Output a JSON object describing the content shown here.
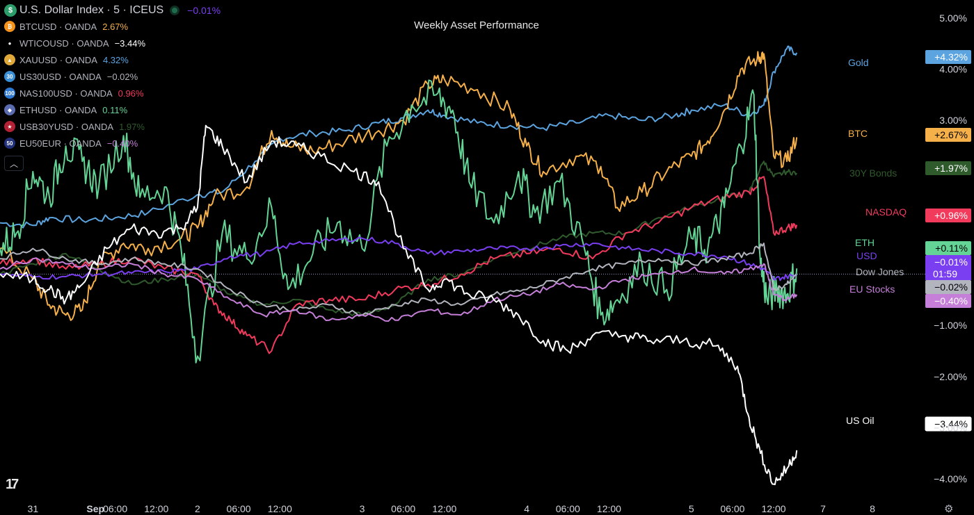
{
  "header": {
    "main_symbol": "U.S. Dollar Index · 5 · ICEUS",
    "main_change": "−0.01%",
    "main_icon": "dollar-sign-icon",
    "collapse_icon": "chevron-up-icon"
  },
  "legend": [
    {
      "symbol": "BTCUSD · OANDA",
      "change": "2.67%",
      "color": "#f5b04a",
      "icon": "bitcoin-icon",
      "icon_text": "₿",
      "icon_bg": "#f7931a"
    },
    {
      "symbol": "WTICOUSD · OANDA",
      "change": "−3.44%",
      "color": "#ffffff",
      "icon": "oil-drop-icon",
      "icon_text": "●",
      "icon_bg": "#000000"
    },
    {
      "symbol": "XAUUSD · OANDA",
      "change": "4.32%",
      "color": "#5ba4e0",
      "icon": "gold-bars-icon",
      "icon_text": "▲",
      "icon_bg": "#e0a93a"
    },
    {
      "symbol": "US30USD · OANDA",
      "change": "−0.02%",
      "color": "#b2b5be",
      "icon": "index-30-icon",
      "icon_text": "30",
      "icon_bg": "#3a8fd6"
    },
    {
      "symbol": "NAS100USD · OANDA",
      "change": "0.96%",
      "color": "#f23a5d",
      "icon": "index-100-icon",
      "icon_text": "100",
      "icon_bg": "#2e77d0"
    },
    {
      "symbol": "ETHUSD · OANDA",
      "change": "0.11%",
      "color": "#63d495",
      "icon": "ethereum-icon",
      "icon_text": "◆",
      "icon_bg": "#5b6bb0"
    },
    {
      "symbol": "USB30YUSD · OANDA",
      "change": "1.97%",
      "color": "#2f5a2c",
      "icon": "us-flag-icon",
      "icon_text": "★",
      "icon_bg": "#b22234"
    },
    {
      "symbol": "EU50EUR · OANDA",
      "change": "−0.40%",
      "color": "#c57fd8",
      "icon": "index-50-icon",
      "icon_text": "50",
      "icon_bg": "#23307a"
    }
  ],
  "chart_data": {
    "type": "line",
    "title": "Weekly Asset Performance",
    "y_unit": "%",
    "ylim": [
      -4.35,
      5.35
    ],
    "y_ticks": [
      "5.00%",
      "4.00%",
      "3.00%",
      "−1.00%",
      "−2.00%",
      "−3.00%",
      "−4.00%"
    ],
    "y_tick_values": [
      5,
      4,
      3,
      -1,
      -2,
      -3,
      -4
    ],
    "x_ticks": [
      "31",
      "Sep",
      "06:00",
      "12:00",
      "2",
      "06:00",
      "12:00",
      "3",
      "06:00",
      "12:00",
      "4",
      "06:00",
      "12:00",
      "5",
      "06:00",
      "12:00",
      "7",
      "8"
    ],
    "x_tick_values": [
      0.0,
      0.38,
      0.5,
      0.75,
      1.0,
      1.25,
      1.5,
      2.0,
      2.25,
      2.5,
      3.0,
      3.25,
      3.5,
      4.0,
      4.25,
      4.5,
      4.8,
      5.1
    ],
    "x_bold": [
      false,
      true,
      false,
      false,
      false,
      false,
      false,
      false,
      false,
      false,
      false,
      false,
      false,
      false,
      false,
      false,
      false,
      false
    ],
    "x_range": [
      -0.2,
      5.4
    ],
    "x_end": 4.64,
    "baseline": 0,
    "countdown": "01:59",
    "series": [
      {
        "name": "Gold",
        "label": "Gold",
        "color": "#5ba4e0",
        "badge": "+4.32%",
        "badge_text_color": "#ffffff",
        "x": [
          -0.2,
          0.0,
          0.1,
          0.3,
          0.5,
          0.7,
          1.0,
          1.15,
          1.35,
          1.5,
          1.7,
          1.9,
          2.1,
          2.25,
          2.4,
          2.5,
          2.7,
          2.9,
          3.1,
          3.3,
          3.5,
          3.7,
          3.9,
          4.0,
          4.2,
          4.35,
          4.44,
          4.5,
          4.58,
          4.64
        ],
        "values": [
          1.0,
          0.95,
          1.1,
          1.05,
          1.1,
          1.2,
          1.55,
          1.6,
          2.2,
          2.65,
          2.75,
          2.8,
          2.95,
          3.05,
          3.2,
          3.1,
          2.95,
          2.9,
          2.85,
          2.95,
          3.1,
          3.0,
          3.1,
          3.2,
          3.3,
          3.1,
          3.3,
          3.95,
          4.4,
          4.32
        ]
      },
      {
        "name": "BTC",
        "label": "BTC",
        "color": "#f5b04a",
        "badge": "+2.67%",
        "badge_text_color": "#000000",
        "x": [
          -0.2,
          0.0,
          0.1,
          0.2,
          0.3,
          0.4,
          0.55,
          0.7,
          0.9,
          1.0,
          1.1,
          1.3,
          1.45,
          1.55,
          1.7,
          1.9,
          2.1,
          2.25,
          2.4,
          2.5,
          2.7,
          2.9,
          3.0,
          3.1,
          3.3,
          3.45,
          3.55,
          3.7,
          3.85,
          4.0,
          4.1,
          4.2,
          4.3,
          4.4,
          4.44,
          4.5,
          4.58,
          4.64
        ],
        "values": [
          0.5,
          -0.1,
          -0.6,
          -0.8,
          -0.7,
          0.2,
          0.6,
          0.5,
          0.7,
          0.9,
          1.5,
          1.7,
          2.8,
          2.5,
          2.4,
          2.6,
          2.8,
          3.0,
          3.7,
          3.8,
          3.6,
          3.2,
          2.5,
          2.0,
          2.3,
          2.1,
          1.3,
          1.6,
          2.0,
          2.3,
          2.6,
          3.2,
          4.0,
          4.2,
          4.3,
          2.3,
          2.2,
          2.67
        ]
      },
      {
        "name": "30Y Bonds",
        "label": "30Y Bonds",
        "color": "#2f5a2c",
        "badge": "+1.97%",
        "badge_text_color": "#ffffff",
        "x": [
          -0.2,
          0.0,
          0.2,
          0.4,
          0.6,
          0.8,
          1.0,
          1.2,
          1.4,
          1.6,
          1.8,
          2.0,
          2.2,
          2.4,
          2.6,
          2.8,
          3.0,
          3.2,
          3.4,
          3.6,
          3.8,
          4.0,
          4.2,
          4.35,
          4.44,
          4.5,
          4.58,
          4.64
        ],
        "values": [
          0.0,
          0.2,
          0.4,
          0.1,
          -0.2,
          -0.1,
          0.0,
          -0.4,
          -0.6,
          -0.5,
          -0.7,
          -0.8,
          -0.6,
          -0.1,
          0.0,
          0.3,
          0.5,
          0.7,
          0.8,
          0.8,
          1.1,
          1.3,
          1.5,
          1.6,
          2.2,
          1.9,
          2.0,
          1.97
        ]
      },
      {
        "name": "NASDAQ",
        "label": "NASDAQ",
        "color": "#f23a5d",
        "badge": "+0.96%",
        "badge_text_color": "#ffffff",
        "x": [
          -0.2,
          0.0,
          0.2,
          0.4,
          0.6,
          0.8,
          1.0,
          1.1,
          1.2,
          1.3,
          1.45,
          1.6,
          1.8,
          2.0,
          2.2,
          2.4,
          2.6,
          2.8,
          3.0,
          3.2,
          3.4,
          3.6,
          3.8,
          4.0,
          4.2,
          4.35,
          4.44,
          4.5,
          4.58,
          4.64
        ],
        "values": [
          0.2,
          0.3,
          0.1,
          0.2,
          0.3,
          0.1,
          0.0,
          -0.6,
          -0.9,
          -1.2,
          -1.5,
          -0.6,
          -0.5,
          -0.5,
          -0.3,
          -0.2,
          0.0,
          0.3,
          0.4,
          0.5,
          0.3,
          0.8,
          1.0,
          1.3,
          1.5,
          1.6,
          1.9,
          0.8,
          0.9,
          0.96
        ]
      },
      {
        "name": "ETH",
        "label": "ETH",
        "color": "#63d495",
        "badge": "+0.11%",
        "badge_text_color": "#000000",
        "x": [
          -0.2,
          -0.1,
          0.0,
          0.1,
          0.2,
          0.3,
          0.4,
          0.55,
          0.65,
          0.8,
          0.9,
          1.0,
          1.15,
          1.3,
          1.45,
          1.55,
          1.7,
          1.85,
          2.0,
          2.15,
          2.3,
          2.45,
          2.55,
          2.65,
          2.8,
          2.95,
          3.05,
          3.2,
          3.35,
          3.45,
          3.55,
          3.7,
          3.85,
          4.0,
          4.1,
          4.2,
          4.3,
          4.38,
          4.42,
          4.46,
          4.52,
          4.58,
          4.64
        ],
        "values": [
          0.5,
          0.8,
          2.0,
          1.5,
          2.5,
          2.2,
          1.7,
          2.7,
          1.5,
          1.7,
          0.5,
          -1.6,
          0.8,
          0.3,
          1.3,
          -0.3,
          0.4,
          1.0,
          0.5,
          2.5,
          3.3,
          3.5,
          3.2,
          1.8,
          1.0,
          2.0,
          1.2,
          1.8,
          0.5,
          -0.8,
          -0.5,
          0.2,
          -0.3,
          0.7,
          0.5,
          1.3,
          2.5,
          3.5,
          0.2,
          -0.5,
          -0.3,
          -0.4,
          0.11
        ]
      },
      {
        "name": "USD",
        "label": "USD",
        "color": "#7b3ff2",
        "badge": "−0.01%",
        "badge_text_color": "#ffffff",
        "x": [
          -0.2,
          0.0,
          0.2,
          0.4,
          0.6,
          0.8,
          1.0,
          1.2,
          1.4,
          1.6,
          1.8,
          2.0,
          2.2,
          2.4,
          2.6,
          2.8,
          3.0,
          3.2,
          3.4,
          3.6,
          3.8,
          4.0,
          4.2,
          4.35,
          4.44,
          4.5,
          4.58,
          4.64
        ],
        "values": [
          0.0,
          -0.05,
          -0.05,
          0.0,
          0.02,
          0.05,
          0.1,
          0.35,
          0.4,
          0.6,
          0.65,
          0.7,
          0.6,
          0.4,
          0.45,
          0.5,
          0.5,
          0.55,
          0.6,
          0.5,
          0.45,
          0.4,
          0.35,
          0.2,
          0.1,
          -0.1,
          -0.05,
          -0.01
        ]
      },
      {
        "name": "Dow Jones",
        "label": "Dow Jones",
        "color": "#b2b5be",
        "badge": "−0.02%",
        "badge_text_color": "#000000",
        "x": [
          -0.2,
          0.0,
          0.2,
          0.4,
          0.6,
          0.8,
          1.0,
          1.2,
          1.4,
          1.6,
          1.8,
          2.0,
          2.2,
          2.4,
          2.6,
          2.8,
          3.0,
          3.2,
          3.4,
          3.6,
          3.8,
          4.0,
          4.2,
          4.35,
          4.44,
          4.5,
          4.58,
          4.64
        ],
        "values": [
          0.3,
          0.5,
          0.3,
          0.2,
          0.3,
          0.2,
          0.1,
          -0.3,
          -0.6,
          -0.7,
          -0.6,
          -0.8,
          -0.6,
          -0.5,
          -0.6,
          -0.4,
          -0.3,
          -0.1,
          0.1,
          0.2,
          0.3,
          0.2,
          0.3,
          0.4,
          0.6,
          -0.3,
          -0.2,
          -0.02
        ]
      },
      {
        "name": "EU Stocks",
        "label": "EU Stocks",
        "color": "#c57fd8",
        "badge": "−0.40%",
        "badge_text_color": "#ffffff",
        "x": [
          -0.2,
          0.0,
          0.2,
          0.4,
          0.6,
          0.8,
          1.0,
          1.2,
          1.4,
          1.6,
          1.8,
          2.0,
          2.2,
          2.4,
          2.6,
          2.8,
          3.0,
          3.2,
          3.4,
          3.6,
          3.8,
          4.0,
          4.2,
          4.35,
          4.44,
          4.5,
          4.58,
          4.64
        ],
        "values": [
          0.1,
          0.3,
          0.2,
          0.1,
          0.2,
          0.0,
          -0.1,
          -0.5,
          -0.8,
          -0.7,
          -0.9,
          -0.8,
          -0.9,
          -0.7,
          -0.8,
          -0.5,
          -0.4,
          -0.2,
          -0.3,
          -0.1,
          0.0,
          0.1,
          0.0,
          0.1,
          0.2,
          -0.4,
          -0.5,
          -0.4
        ]
      },
      {
        "name": "US Oil",
        "label": "US Oil",
        "color": "#ffffff",
        "badge": "−3.44%",
        "badge_text_color": "#000000",
        "x": [
          -0.2,
          0.0,
          0.1,
          0.2,
          0.3,
          0.45,
          0.6,
          0.75,
          0.9,
          1.0,
          1.05,
          1.15,
          1.3,
          1.45,
          1.6,
          1.75,
          1.95,
          2.1,
          2.25,
          2.4,
          2.5,
          2.65,
          2.8,
          2.95,
          3.1,
          3.25,
          3.4,
          3.6,
          3.75,
          3.95,
          4.15,
          4.28,
          4.35,
          4.42,
          4.5,
          4.58,
          4.64
        ],
        "values": [
          0.0,
          -0.1,
          -0.3,
          -0.5,
          -0.2,
          0.5,
          0.9,
          0.8,
          0.9,
          1.3,
          2.9,
          2.5,
          1.8,
          2.6,
          2.5,
          2.3,
          2.0,
          1.8,
          0.5,
          -0.3,
          -0.1,
          -0.4,
          -0.5,
          -0.8,
          -1.3,
          -1.5,
          -1.2,
          -1.2,
          -1.3,
          -1.3,
          -1.4,
          -1.8,
          -2.8,
          -3.5,
          -4.1,
          -3.8,
          -3.44
        ]
      }
    ]
  }
}
